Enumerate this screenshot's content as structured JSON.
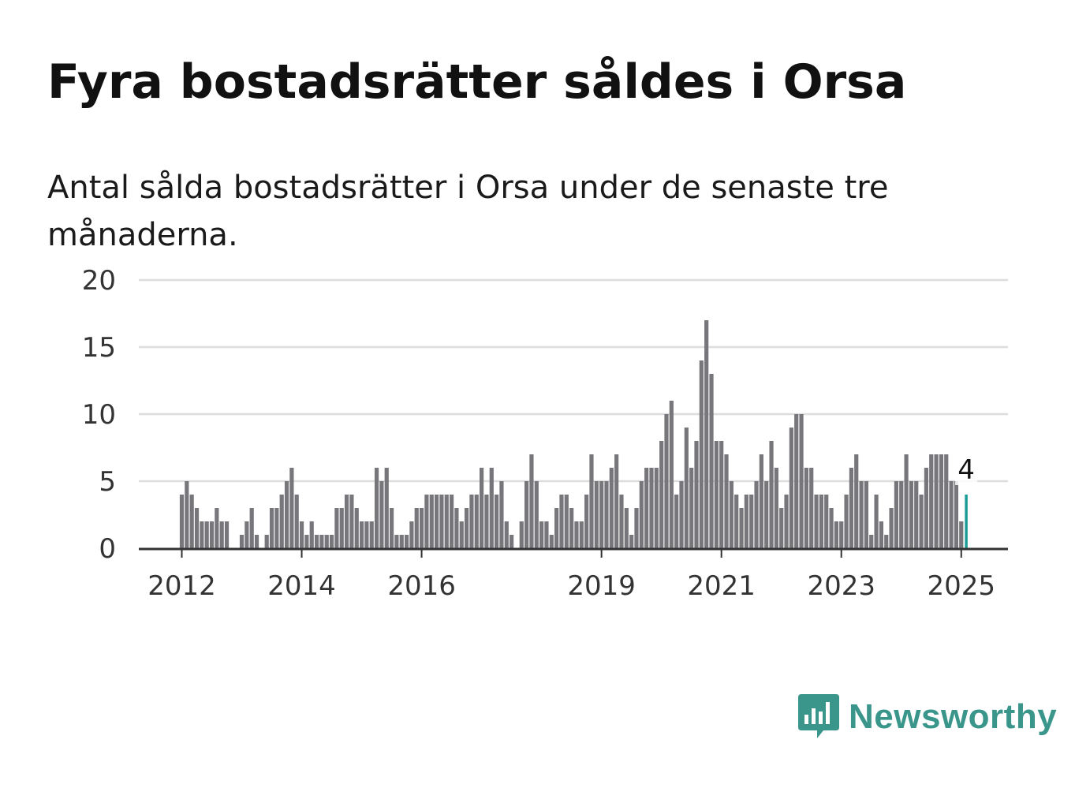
{
  "title": "Fyra bostadsrätter såldes i Orsa",
  "subtitle": "Antal sålda bostadsrätter i Orsa under de senaste tre månaderna.",
  "brand": {
    "name": "Newsworthy",
    "color": "#3a968b",
    "icon": "newsworthy-logo-icon"
  },
  "colors": {
    "bar": "#77767b",
    "highlight": "#1a9c97",
    "grid": "#dddddd",
    "axis": "#333333"
  },
  "chart_data": {
    "type": "bar",
    "start": "2012-01",
    "frequency": "monthly",
    "x_tick_labels": [
      "2012",
      "2014",
      "2016",
      "2019",
      "2021",
      "2023",
      "2025"
    ],
    "y_ticks": [
      0,
      5,
      10,
      15,
      20
    ],
    "ylim": [
      0,
      20
    ],
    "grid": true,
    "values": [
      4,
      5,
      4,
      3,
      2,
      2,
      2,
      3,
      2,
      2,
      0,
      0,
      1,
      2,
      3,
      1,
      0,
      1,
      3,
      3,
      4,
      5,
      6,
      4,
      2,
      1,
      2,
      1,
      1,
      1,
      1,
      3,
      3,
      4,
      4,
      3,
      2,
      2,
      2,
      6,
      5,
      6,
      3,
      1,
      1,
      1,
      2,
      3,
      3,
      4,
      4,
      4,
      4,
      4,
      4,
      3,
      2,
      3,
      4,
      4,
      6,
      4,
      6,
      4,
      5,
      2,
      1,
      0,
      2,
      5,
      7,
      5,
      2,
      2,
      1,
      3,
      4,
      4,
      3,
      2,
      2,
      4,
      7,
      5,
      5,
      5,
      6,
      7,
      4,
      3,
      1,
      3,
      5,
      6,
      6,
      6,
      8,
      10,
      11,
      4,
      5,
      9,
      6,
      8,
      14,
      17,
      13,
      8,
      8,
      7,
      5,
      4,
      3,
      4,
      4,
      5,
      7,
      5,
      8,
      6,
      3,
      4,
      9,
      10,
      10,
      6,
      6,
      4,
      4,
      4,
      3,
      2,
      2,
      4,
      6,
      7,
      5,
      5,
      1,
      4,
      2,
      1,
      3,
      5,
      5,
      7,
      5,
      5,
      4,
      6,
      7,
      7,
      7,
      7,
      5,
      5,
      2,
      4
    ],
    "highlight_last": true,
    "annotation": {
      "text": "4"
    }
  }
}
